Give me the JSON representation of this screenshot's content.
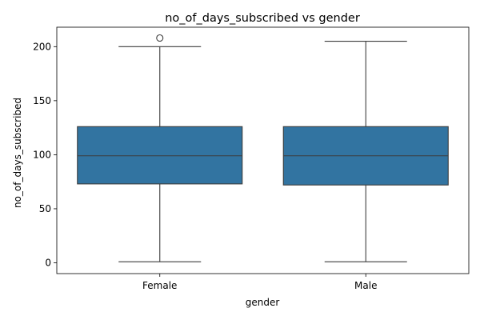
{
  "chart_data": {
    "type": "box",
    "title": "no_of_days_subscribed vs gender",
    "xlabel": "gender",
    "ylabel": "no_of_days_subscribed",
    "categories": [
      "Female",
      "Male"
    ],
    "ylim": [
      -10,
      218
    ],
    "yticks": [
      0,
      50,
      100,
      150,
      200
    ],
    "boxes": [
      {
        "category": "Female",
        "whisker_low": 1,
        "q1": 73,
        "median": 99,
        "q3": 126,
        "whisker_high": 200,
        "outliers": [
          208
        ]
      },
      {
        "category": "Male",
        "whisker_low": 1,
        "q1": 72,
        "median": 99,
        "q3": 126,
        "whisker_high": 205,
        "outliers": []
      }
    ],
    "box_color": "#3274a1",
    "line_color": "#3d3d3d",
    "grid": false,
    "legend": "none"
  }
}
